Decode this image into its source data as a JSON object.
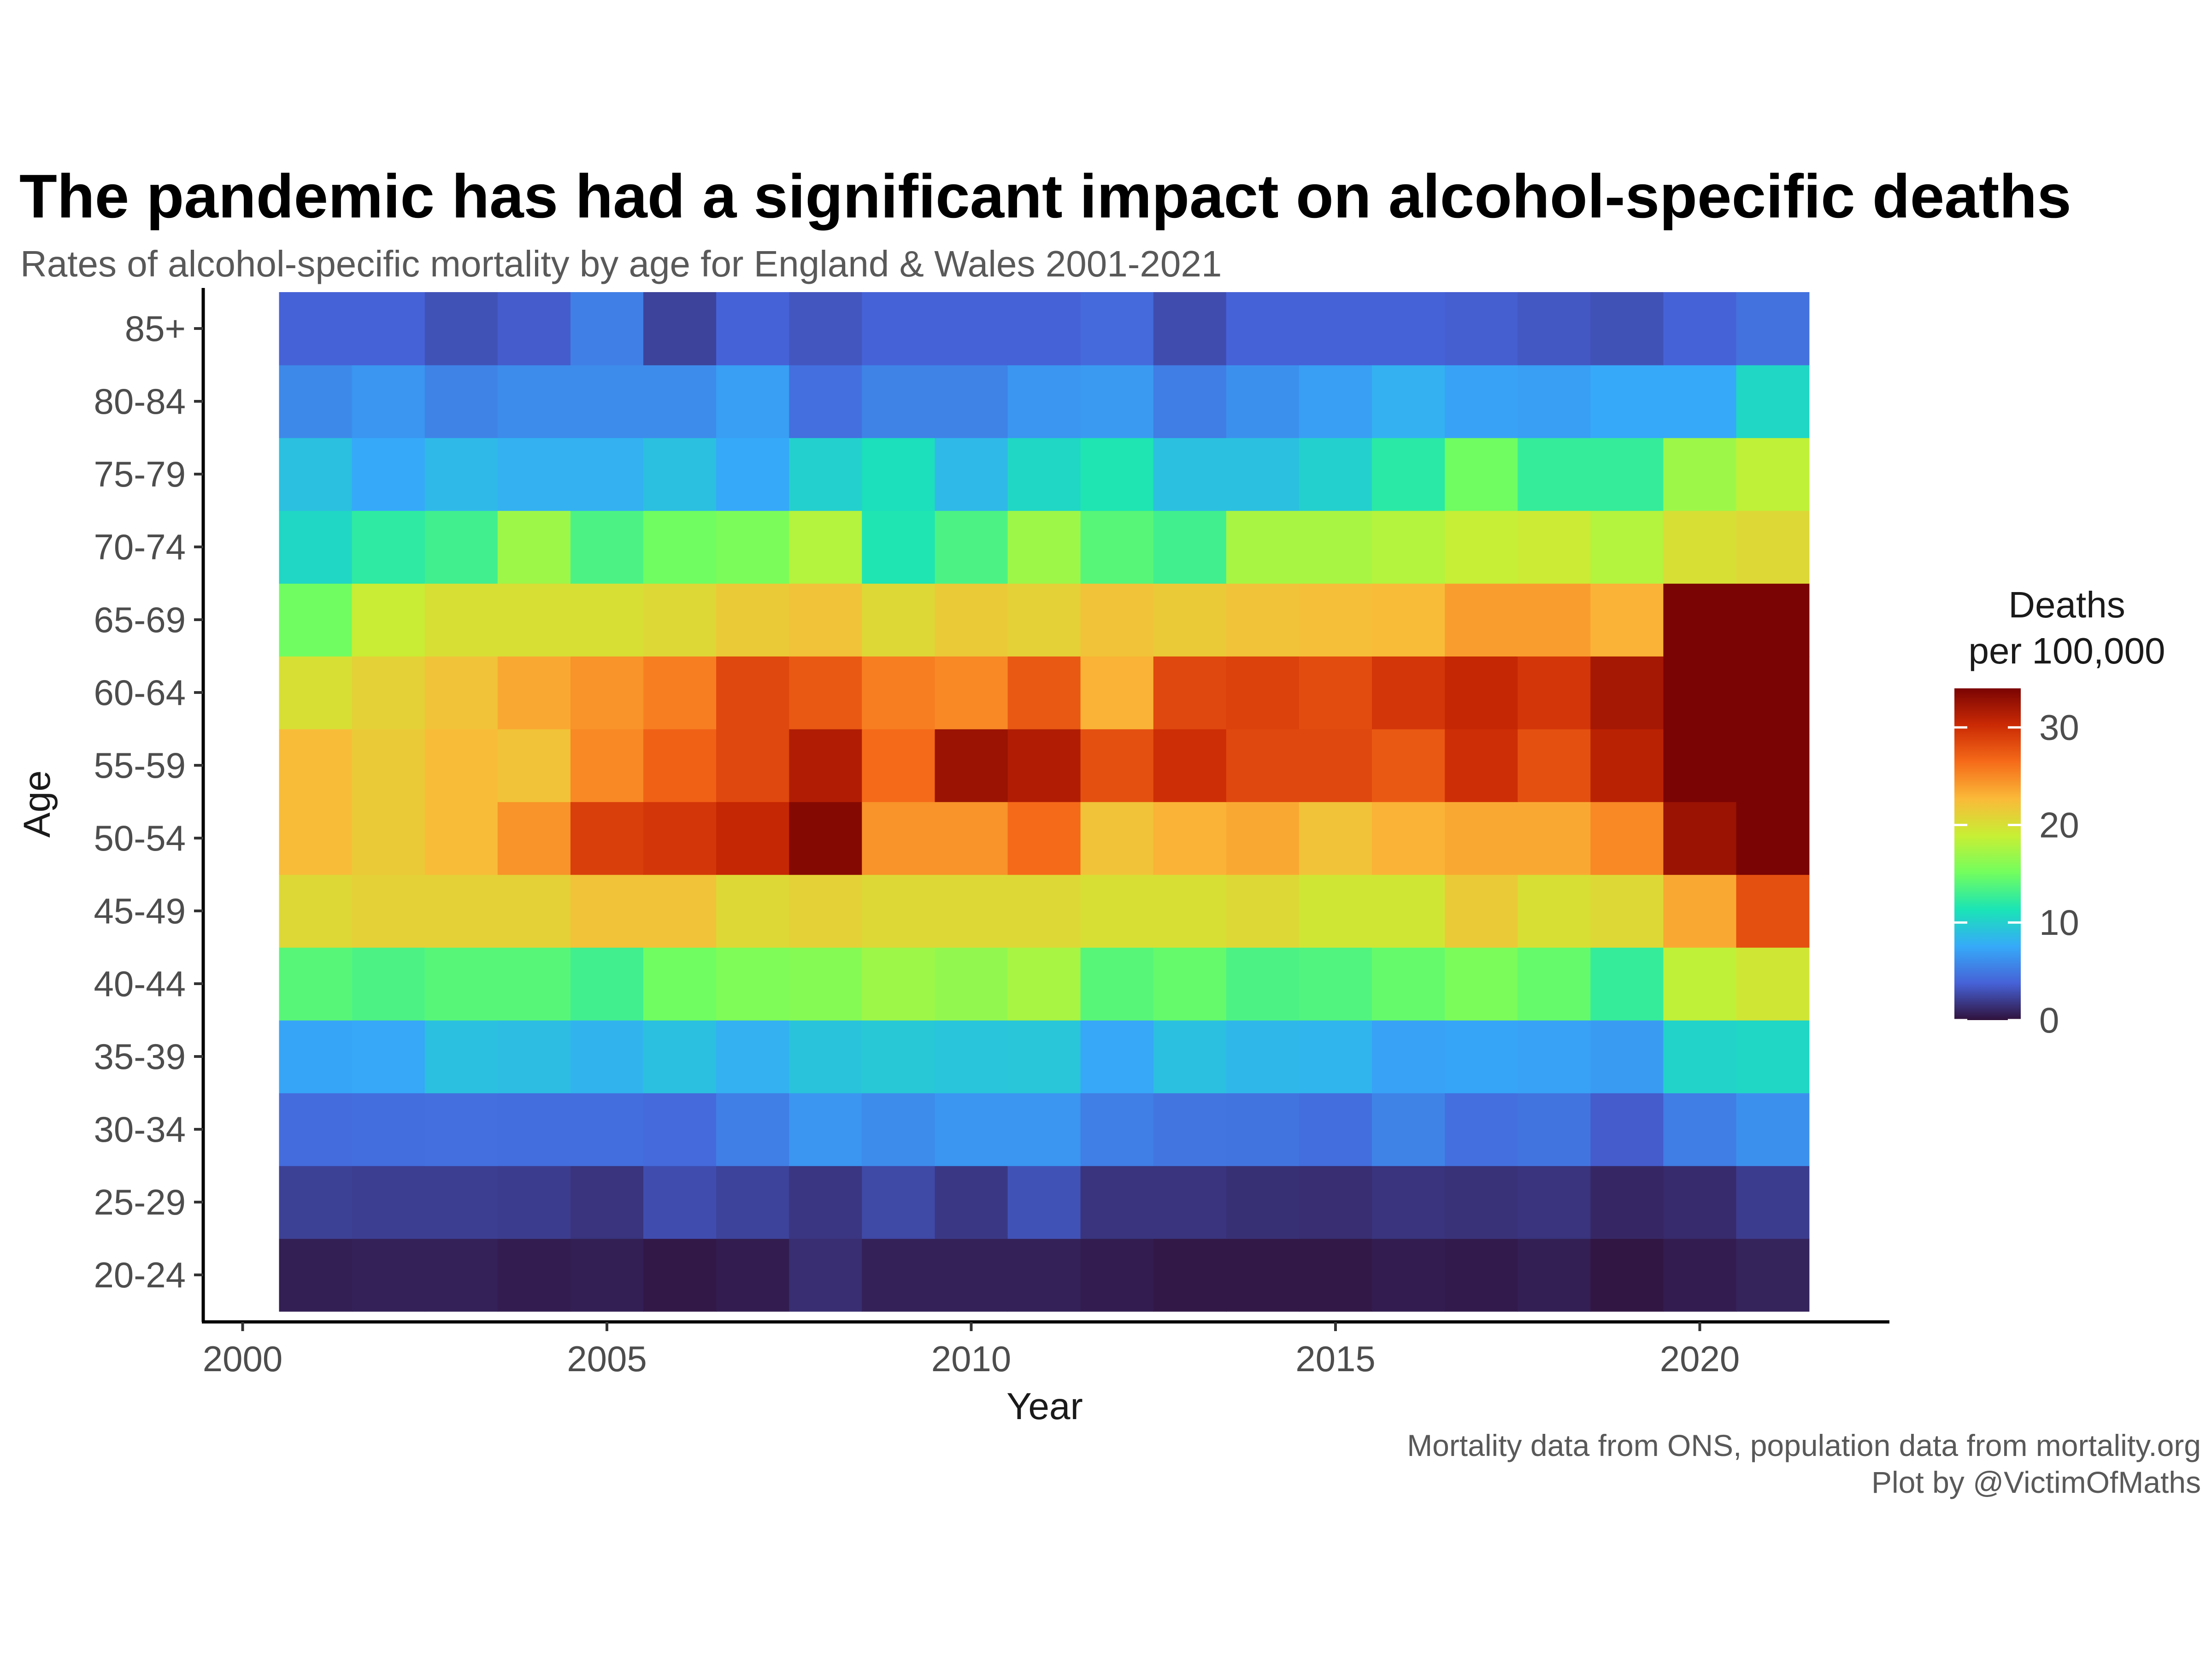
{
  "chart_data": {
    "type": "heatmap",
    "title": "The pandemic has had a significant impact on alcohol-specific deaths",
    "subtitle": "Rates of alcohol-specific mortality by age for England & Wales 2001-2021",
    "xlabel": "Year",
    "ylabel": "Age",
    "x": [
      2001,
      2002,
      2003,
      2004,
      2005,
      2006,
      2007,
      2008,
      2009,
      2010,
      2011,
      2012,
      2013,
      2014,
      2015,
      2016,
      2017,
      2018,
      2019,
      2020,
      2021
    ],
    "x_ticks": [
      2000,
      2005,
      2010,
      2015,
      2020
    ],
    "xlim": [
      1999.5,
      2022.8
    ],
    "y": [
      "20-24",
      "25-29",
      "30-34",
      "35-39",
      "40-44",
      "45-49",
      "50-54",
      "55-59",
      "60-64",
      "65-69",
      "70-74",
      "75-79",
      "80-84",
      "85+"
    ],
    "values": [
      [
        0.6,
        0.7,
        0.7,
        0.5,
        0.6,
        0.3,
        0.5,
        1.3,
        0.7,
        0.7,
        0.7,
        0.5,
        0.3,
        0.3,
        0.3,
        0.5,
        0.4,
        0.6,
        0.2,
        0.5,
        0.8
      ],
      [
        2.2,
        2.1,
        2.1,
        2.0,
        1.6,
        2.8,
        2.3,
        1.7,
        2.6,
        1.8,
        3.0,
        1.6,
        1.6,
        1.4,
        1.3,
        1.6,
        1.5,
        1.6,
        1.0,
        1.2,
        2.0
      ],
      [
        4.3,
        4.4,
        4.5,
        4.4,
        4.4,
        4.2,
        5.3,
        6.5,
        6.0,
        6.5,
        6.5,
        5.3,
        4.8,
        4.7,
        4.4,
        5.5,
        4.5,
        4.7,
        3.5,
        5.2,
        6.2
      ],
      [
        7.3,
        7.4,
        9.0,
        8.8,
        8.2,
        9.0,
        8.0,
        9.2,
        9.5,
        9.3,
        9.4,
        7.4,
        9.0,
        8.4,
        8.3,
        7.2,
        7.3,
        7.2,
        6.8,
        10.2,
        10.5
      ],
      [
        14.0,
        13.5,
        14.0,
        14.0,
        13.0,
        15.0,
        15.7,
        16.0,
        17.0,
        16.5,
        17.5,
        14.0,
        14.5,
        13.5,
        13.7,
        14.5,
        15.5,
        14.5,
        12.5,
        18.5,
        19.5
      ],
      [
        20.5,
        21.0,
        21.0,
        21.0,
        22.0,
        22.0,
        20.5,
        21.0,
        20.5,
        20.5,
        20.5,
        20.0,
        20.0,
        20.5,
        19.5,
        19.5,
        21.5,
        20.0,
        20.5,
        23.5,
        28.0
      ],
      [
        22.5,
        21.5,
        22.5,
        24.5,
        29.0,
        29.5,
        30.5,
        33.5,
        24.5,
        24.5,
        26.5,
        22.0,
        23.0,
        23.5,
        22.0,
        23.0,
        23.5,
        23.5,
        25.0,
        32.5,
        38.5
      ],
      [
        22.5,
        21.5,
        22.5,
        22.0,
        25.0,
        27.0,
        28.5,
        31.5,
        26.5,
        32.5,
        31.5,
        28.0,
        30.0,
        28.5,
        28.5,
        27.5,
        30.0,
        28.0,
        31.0,
        38.0,
        42.0
      ],
      [
        20.0,
        21.0,
        22.0,
        23.5,
        24.5,
        25.5,
        28.5,
        27.5,
        25.5,
        25.0,
        27.5,
        23.0,
        28.5,
        28.8,
        28.2,
        29.5,
        30.5,
        29.5,
        32.0,
        36.5,
        38.5
      ],
      [
        15.0,
        19.0,
        20.0,
        20.0,
        20.0,
        20.5,
        21.5,
        22.0,
        20.5,
        21.5,
        21.0,
        22.0,
        21.5,
        22.0,
        22.3,
        22.5,
        24.0,
        24.0,
        23.0,
        34.0,
        36.0
      ],
      [
        10.5,
        12.2,
        13.0,
        17.0,
        13.5,
        15.0,
        15.5,
        18.0,
        11.5,
        13.5,
        17.0,
        14.0,
        13.0,
        17.5,
        17.5,
        18.0,
        18.8,
        19.2,
        18.0,
        20.0,
        20.5
      ],
      [
        9.0,
        7.5,
        8.5,
        8.0,
        8.0,
        9.0,
        7.5,
        10.0,
        11.0,
        8.5,
        10.5,
        11.5,
        9.0,
        9.0,
        10.0,
        12.0,
        15.0,
        12.5,
        12.5,
        17.0,
        18.5
      ],
      [
        5.8,
        6.5,
        5.5,
        6.0,
        6.0,
        6.0,
        7.0,
        4.5,
        5.5,
        5.5,
        6.5,
        6.7,
        5.2,
        6.2,
        7.0,
        8.0,
        7.2,
        7.0,
        7.5,
        7.5,
        10.5
      ],
      [
        3.8,
        3.8,
        3.0,
        3.5,
        5.3,
        2.3,
        3.8,
        3.2,
        3.8,
        3.8,
        3.8,
        4.2,
        2.8,
        3.8,
        3.8,
        3.8,
        3.6,
        3.3,
        3.0,
        3.8,
        4.6
      ]
    ],
    "legend": {
      "title": [
        "Deaths",
        "per 100,000"
      ],
      "range": [
        0,
        34
      ],
      "ticks": [
        0,
        10,
        20,
        30
      ],
      "placement": "right"
    },
    "colormap": [
      "#30123b",
      "#4662d7",
      "#36aaf9",
      "#1ae4b6",
      "#72fe5e",
      "#c8ef34",
      "#faba39",
      "#f66b19",
      "#cb2a04",
      "#7a0403"
    ],
    "grid": false
  },
  "caption": {
    "line1": "Mortality data from ONS, population data from mortality.org",
    "line2": "Plot by @VictimOfMaths"
  }
}
